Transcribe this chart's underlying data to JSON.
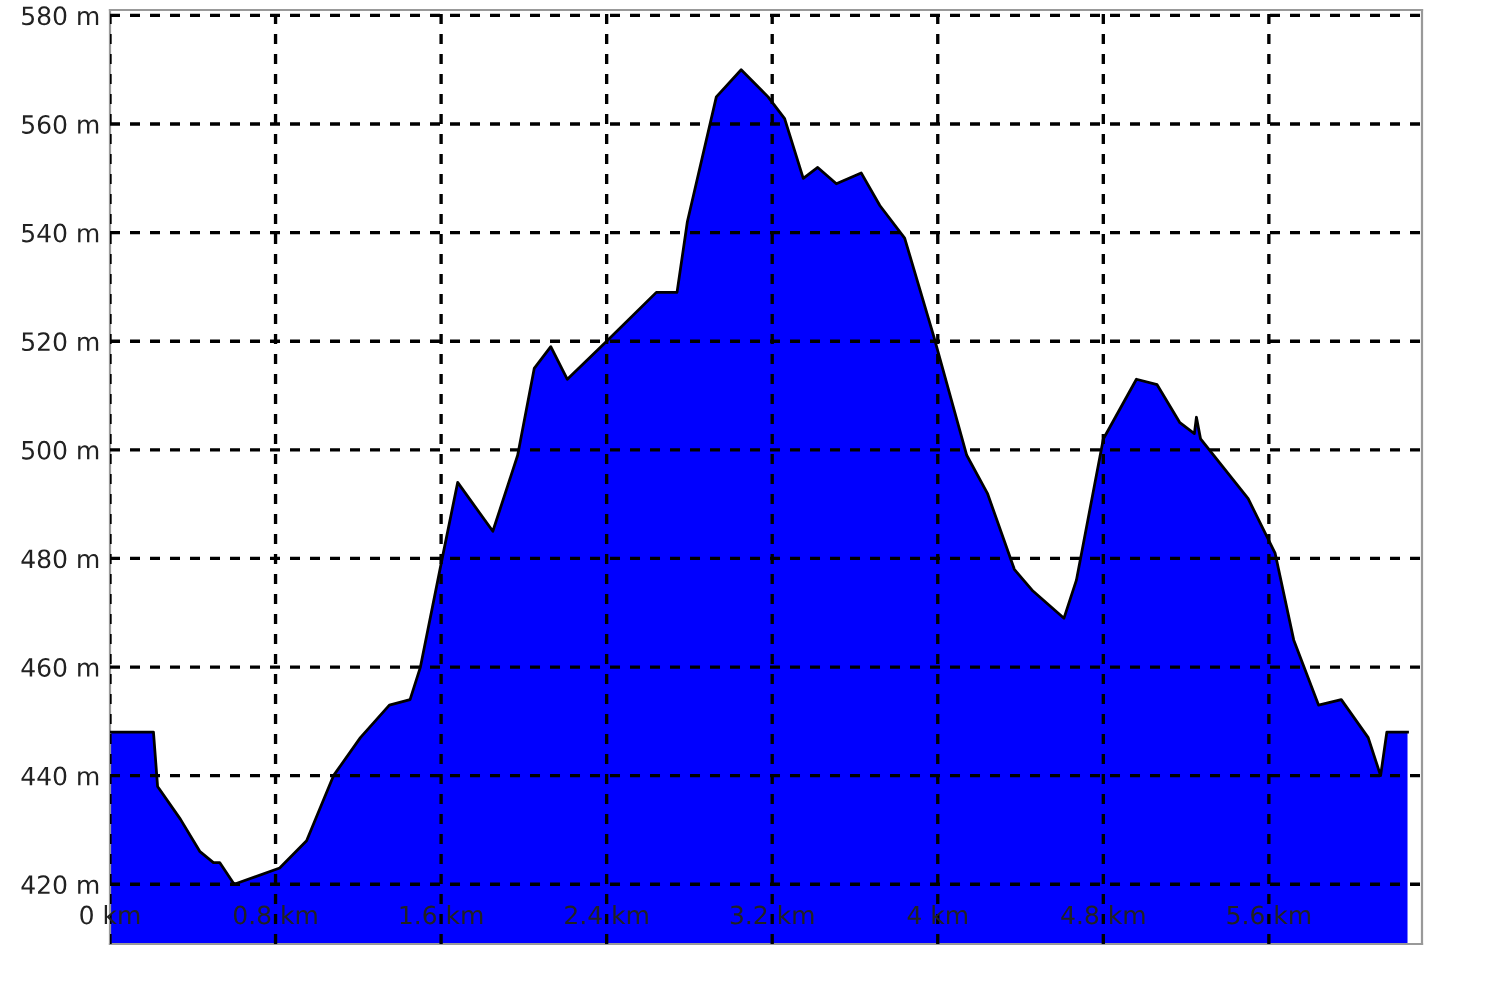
{
  "chart_data": {
    "type": "area",
    "color": "#0000ff",
    "x": [
      0,
      0.21,
      0.23,
      0.34,
      0.435,
      0.5,
      0.53,
      0.6,
      0.82,
      0.95,
      1.08,
      1.21,
      1.35,
      1.45,
      1.5,
      1.6,
      1.68,
      1.85,
      1.97,
      2.05,
      2.13,
      2.21,
      2.4,
      2.64,
      2.74,
      2.79,
      2.93,
      3.05,
      3.18,
      3.26,
      3.35,
      3.42,
      3.51,
      3.63,
      3.72,
      3.84,
      3.98,
      4.14,
      4.24,
      4.37,
      4.46,
      4.61,
      4.67,
      4.8,
      4.96,
      5.06,
      5.17,
      5.24,
      5.25,
      5.27,
      5.5,
      5.63,
      5.72,
      5.84,
      5.95,
      6.08,
      6.14,
      6.17,
      6.27
    ],
    "values": [
      448,
      448,
      438,
      432,
      426,
      424,
      424,
      420,
      423,
      428,
      440,
      447,
      453,
      454,
      460,
      479,
      494,
      485,
      499,
      515,
      519,
      513,
      520,
      529,
      529,
      542,
      565,
      570,
      565,
      561,
      550,
      552,
      549,
      551,
      545,
      539,
      521,
      499,
      492,
      478,
      474,
      469,
      476,
      502,
      513,
      512,
      505,
      503,
      506,
      502,
      491,
      481,
      465,
      453,
      454,
      447,
      440,
      448,
      448
    ],
    "xlim": [
      0,
      6.34
    ],
    "ylim": [
      409,
      581
    ],
    "xticks": [
      {
        "value": 0,
        "label": "0 km"
      },
      {
        "value": 0.8,
        "label": "0.8 km"
      },
      {
        "value": 1.6,
        "label": "1.6 km"
      },
      {
        "value": 2.4,
        "label": "2.4 km"
      },
      {
        "value": 3.2,
        "label": "3.2 km"
      },
      {
        "value": 4.0,
        "label": "4 km"
      },
      {
        "value": 4.8,
        "label": "4.8 km"
      },
      {
        "value": 5.6,
        "label": "5.6 km"
      }
    ],
    "yticks": [
      {
        "value": 420,
        "label": "420 m"
      },
      {
        "value": 440,
        "label": "440 m"
      },
      {
        "value": 460,
        "label": "460 m"
      },
      {
        "value": 480,
        "label": "480 m"
      },
      {
        "value": 500,
        "label": "500 m"
      },
      {
        "value": 520,
        "label": "520 m"
      },
      {
        "value": 540,
        "label": "540 m"
      },
      {
        "value": 560,
        "label": "560 m"
      },
      {
        "value": 580,
        "label": "580 m"
      }
    ],
    "grid": true,
    "line_style": "solid"
  }
}
